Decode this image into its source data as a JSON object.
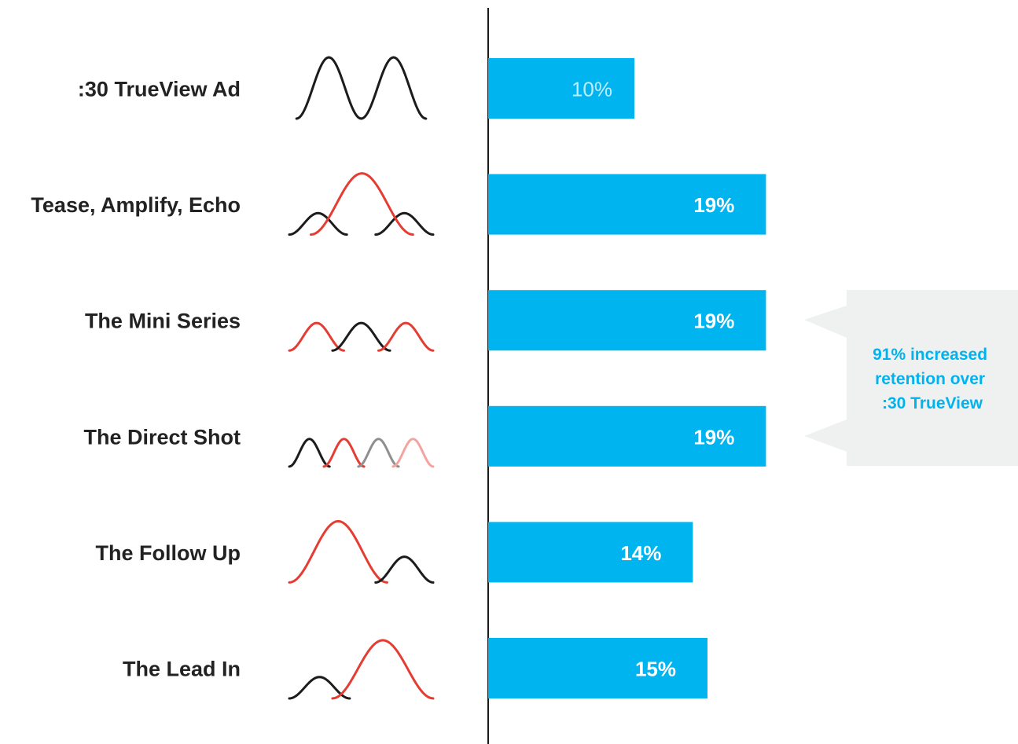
{
  "chart_data": {
    "type": "bar",
    "orientation": "horizontal",
    "categories": [
      ":30 TrueView Ad",
      "Tease, Amplify, Echo",
      "The Mini Series",
      "The Direct Shot",
      "The Follow Up",
      "The Lead In"
    ],
    "values": [
      10,
      19,
      19,
      19,
      14,
      15
    ],
    "value_labels": [
      "10%",
      "19%",
      "19%",
      "19%",
      "14%",
      "15%"
    ],
    "xlim": [
      0,
      20
    ],
    "grid": false,
    "annotation": "91% increased retention over :30 TrueView",
    "annotation_lines": [
      "91% increased",
      "retention over",
      ":30 TrueView"
    ],
    "bar_color": "#00b5ef",
    "callout_bg": "#eff1f1",
    "callout_text_color": "#00b3ee"
  },
  "icons": [
    {
      "name": "two-wave-icon",
      "waves": [
        {
          "c": "black",
          "s": 0.05,
          "e": 0.5,
          "h": 1.0
        },
        {
          "c": "black",
          "s": 0.5,
          "e": 0.95,
          "h": 1.0
        }
      ]
    },
    {
      "name": "tease-amplify-echo-icon",
      "waves": [
        {
          "c": "black",
          "s": 0.0,
          "e": 0.4,
          "h": 0.35
        },
        {
          "c": "black",
          "s": 0.6,
          "e": 1.0,
          "h": 0.35
        },
        {
          "c": "red",
          "s": 0.15,
          "e": 0.86,
          "h": 1.0
        }
      ]
    },
    {
      "name": "mini-series-icon",
      "waves": [
        {
          "c": "red",
          "s": 0.0,
          "e": 0.38,
          "h": 0.45
        },
        {
          "c": "black",
          "s": 0.3,
          "e": 0.7,
          "h": 0.45
        },
        {
          "c": "red",
          "s": 0.62,
          "e": 1.0,
          "h": 0.45
        }
      ]
    },
    {
      "name": "direct-shot-icon",
      "waves": [
        {
          "c": "black",
          "s": 0.0,
          "e": 0.28,
          "h": 0.45
        },
        {
          "c": "red",
          "s": 0.24,
          "e": 0.52,
          "h": 0.45
        },
        {
          "c": "gray",
          "s": 0.48,
          "e": 0.76,
          "h": 0.45
        },
        {
          "c": "pink",
          "s": 0.72,
          "e": 1.0,
          "h": 0.45
        }
      ]
    },
    {
      "name": "follow-up-icon",
      "waves": [
        {
          "c": "red",
          "s": 0.0,
          "e": 0.68,
          "h": 1.0
        },
        {
          "c": "black",
          "s": 0.6,
          "e": 1.0,
          "h": 0.42
        }
      ]
    },
    {
      "name": "lead-in-icon",
      "waves": [
        {
          "c": "black",
          "s": 0.0,
          "e": 0.42,
          "h": 0.35
        },
        {
          "c": "red",
          "s": 0.3,
          "e": 1.0,
          "h": 0.95
        }
      ]
    }
  ],
  "wave_colors": {
    "black": "#1c1c1c",
    "red": "#e43d33",
    "gray": "#8f8f8f",
    "pink": "#f3a3a0"
  }
}
